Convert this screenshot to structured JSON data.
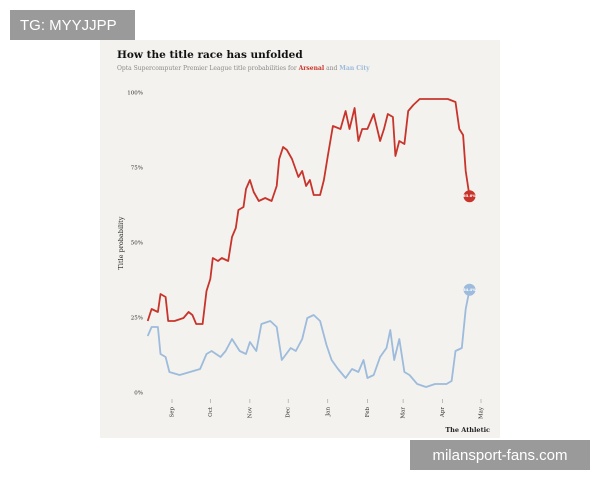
{
  "watermark_top": "TG: MYYJJPP",
  "watermark_bottom": "milansport-fans.com",
  "chart_data": {
    "type": "line",
    "title": "How the title race has unfolded",
    "subtitle": "Opta Supercomputer Premier League title probabilities for",
    "subtitle_joiner": "and",
    "y_label": "Title probability",
    "source": "The Athletic",
    "xlim": [
      0,
      273
    ],
    "xticks": [
      {
        "value": 31,
        "label": "Sep"
      },
      {
        "value": 61,
        "label": "Oct"
      },
      {
        "value": 92,
        "label": "Nov"
      },
      {
        "value": 122,
        "label": "Dec"
      },
      {
        "value": 153,
        "label": "Jan"
      },
      {
        "value": 184,
        "label": "Feb"
      },
      {
        "value": 212,
        "label": "Mar"
      },
      {
        "value": 243,
        "label": "Apr"
      },
      {
        "value": 273,
        "label": "May"
      }
    ],
    "ylim": [
      0,
      100
    ],
    "yticks": [
      {
        "value": 0,
        "label": "0%"
      },
      {
        "value": 25,
        "label": "25%"
      },
      {
        "value": 50,
        "label": "50%"
      },
      {
        "value": 75,
        "label": "75%"
      },
      {
        "value": 100,
        "label": "100%"
      }
    ],
    "grid": false,
    "series": [
      {
        "name": "Arsenal",
        "color": "#c8342b",
        "end_label": "65.6%",
        "x": [
          12,
          15,
          20,
          22,
          26,
          28,
          33,
          40,
          44,
          47,
          50,
          55,
          58,
          61,
          63,
          67,
          70,
          75,
          78,
          81,
          83,
          87,
          89,
          92,
          95,
          99,
          104,
          109,
          113,
          115,
          118,
          121,
          125,
          130,
          133,
          136,
          139,
          142,
          147,
          150,
          153,
          157,
          163,
          167,
          170,
          174,
          177,
          180,
          184,
          189,
          194,
          197,
          200,
          204,
          206,
          209,
          213,
          216,
          220,
          225,
          233,
          241,
          247,
          253,
          256,
          259,
          261,
          264
        ],
        "values": [
          24,
          28,
          27,
          33,
          32,
          24,
          24,
          25,
          27,
          26,
          23,
          23,
          34,
          38,
          45,
          44,
          45,
          44,
          52,
          55,
          61,
          62,
          68,
          71,
          67,
          64,
          65,
          64,
          69,
          78,
          82,
          81,
          78,
          72,
          74,
          69,
          71,
          66,
          66,
          71,
          79,
          89,
          88,
          94,
          88,
          95,
          84,
          88,
          88,
          93,
          84,
          88,
          93,
          92,
          79,
          84,
          83,
          94,
          96,
          98,
          98,
          98,
          98,
          97,
          88,
          86,
          74,
          65.6
        ]
      },
      {
        "name": "Man City",
        "color": "#9dbbdc",
        "end_label": "34.4%",
        "x": [
          12,
          15,
          20,
          22,
          26,
          29,
          37,
          45,
          53,
          58,
          62,
          69,
          73,
          78,
          84,
          89,
          92,
          97,
          101,
          108,
          113,
          117,
          124,
          128,
          133,
          137,
          142,
          147,
          152,
          156,
          161,
          167,
          172,
          177,
          181,
          184,
          189,
          194,
          199,
          202,
          205,
          209,
          213,
          217,
          223,
          230,
          237,
          246,
          250,
          253,
          258,
          261,
          264
        ],
        "values": [
          19,
          22,
          22,
          13,
          12,
          7,
          6,
          7,
          8,
          13,
          14,
          12,
          14,
          18,
          14,
          13,
          17,
          14,
          23,
          24,
          22,
          11,
          15,
          14,
          18,
          25,
          26,
          24,
          16,
          11,
          8,
          5,
          8,
          7,
          11,
          5,
          6,
          12,
          15,
          21,
          11,
          18,
          7,
          6,
          3,
          2,
          3,
          3,
          4,
          14,
          15,
          28,
          34.4
        ]
      }
    ]
  }
}
